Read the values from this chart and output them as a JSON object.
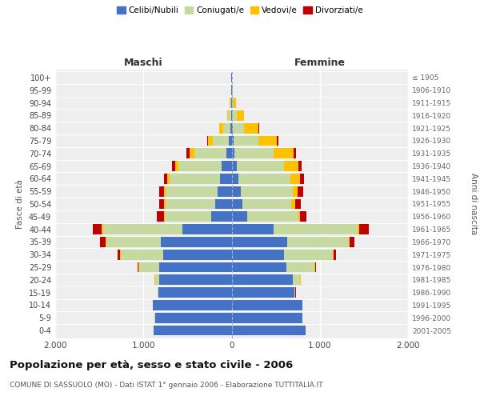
{
  "age_groups": [
    "0-4",
    "5-9",
    "10-14",
    "15-19",
    "20-24",
    "25-29",
    "30-34",
    "35-39",
    "40-44",
    "45-49",
    "50-54",
    "55-59",
    "60-64",
    "65-69",
    "70-74",
    "75-79",
    "80-84",
    "85-89",
    "90-94",
    "95-99",
    "100+"
  ],
  "birth_years": [
    "2001-2005",
    "1996-2000",
    "1991-1995",
    "1986-1990",
    "1981-1985",
    "1976-1980",
    "1971-1975",
    "1966-1970",
    "1961-1965",
    "1956-1960",
    "1951-1955",
    "1946-1950",
    "1941-1945",
    "1936-1940",
    "1931-1935",
    "1926-1930",
    "1921-1925",
    "1916-1920",
    "1911-1915",
    "1906-1910",
    "≤ 1905"
  ],
  "male": {
    "celibi": [
      880,
      870,
      890,
      830,
      820,
      820,
      780,
      800,
      560,
      230,
      190,
      160,
      130,
      110,
      60,
      30,
      15,
      8,
      5,
      2,
      2
    ],
    "coniugati": [
      0,
      1,
      2,
      10,
      50,
      230,
      480,
      620,
      900,
      530,
      560,
      590,
      570,
      490,
      360,
      180,
      80,
      30,
      10,
      3,
      2
    ],
    "vedovi": [
      0,
      0,
      0,
      0,
      2,
      5,
      5,
      5,
      10,
      10,
      15,
      20,
      30,
      40,
      60,
      60,
      45,
      15,
      5,
      0,
      0
    ],
    "divorziati": [
      0,
      0,
      0,
      2,
      5,
      10,
      30,
      70,
      100,
      80,
      60,
      55,
      40,
      35,
      30,
      10,
      2,
      0,
      0,
      0,
      0
    ]
  },
  "female": {
    "nubili": [
      840,
      800,
      800,
      710,
      690,
      620,
      590,
      630,
      480,
      180,
      120,
      100,
      80,
      55,
      30,
      20,
      10,
      8,
      5,
      2,
      2
    ],
    "coniugate": [
      0,
      1,
      3,
      15,
      90,
      320,
      560,
      700,
      950,
      580,
      560,
      590,
      590,
      540,
      450,
      280,
      130,
      50,
      15,
      5,
      2
    ],
    "vedove": [
      0,
      0,
      0,
      0,
      2,
      5,
      5,
      10,
      20,
      20,
      40,
      60,
      110,
      160,
      220,
      210,
      160,
      80,
      30,
      5,
      2
    ],
    "divorziate": [
      0,
      0,
      0,
      2,
      5,
      10,
      30,
      50,
      110,
      70,
      65,
      60,
      40,
      35,
      30,
      20,
      10,
      5,
      2,
      0,
      0
    ]
  },
  "colors": {
    "celibi": "#4472c4",
    "coniugati": "#c5d9a0",
    "vedovi": "#ffc000",
    "divorziati": "#c00000"
  },
  "xlim": 2000,
  "title": "Popolazione per età, sesso e stato civile - 2006",
  "subtitle": "COMUNE DI SASSUOLO (MO) - Dati ISTAT 1° gennaio 2006 - Elaborazione TUTTITALIA.IT",
  "xlabel_left": "Maschi",
  "xlabel_right": "Femmine",
  "ylabel_left": "Fasce di età",
  "ylabel_right": "Anni di nascita",
  "background_color": "#ffffff",
  "plot_bg_color": "#eeeeee"
}
